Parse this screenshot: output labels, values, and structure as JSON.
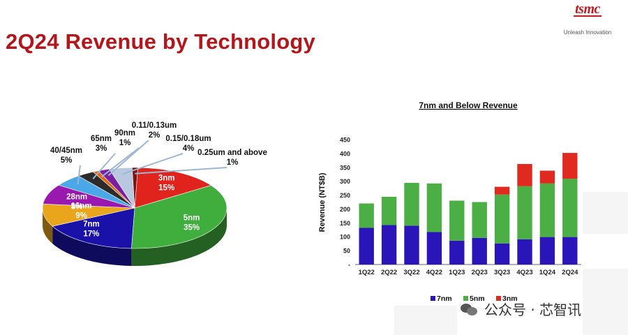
{
  "page": {
    "title": "2Q24 Revenue by Technology",
    "logo": "tsmc",
    "tagline": "Unleash Innovation",
    "watermark": "公众号 · 芯智讯"
  },
  "chart_data": [
    {
      "type": "pie",
      "title": "",
      "style": "3d",
      "slices": [
        {
          "label": "3nm",
          "value": 15,
          "display": "15%",
          "color": "#e0231c"
        },
        {
          "label": "5nm",
          "value": 35,
          "display": "35%",
          "color": "#3fae3c"
        },
        {
          "label": "7nm",
          "value": 17,
          "display": "17%",
          "color": "#1a12a8"
        },
        {
          "label": "16nm",
          "value": 9,
          "display": "9%",
          "color": "#e9a51b"
        },
        {
          "label": "28nm",
          "value": 8,
          "display": "8%",
          "color": "#9a17b0"
        },
        {
          "label": "40/45nm",
          "value": 5,
          "display": "5%",
          "color": "#4aa8e8"
        },
        {
          "label": "65nm",
          "value": 3,
          "display": "3%",
          "color": "#2b2b2b"
        },
        {
          "label": "90nm",
          "value": 1,
          "display": "1%",
          "color": "#e06a12"
        },
        {
          "label": "0.11/0.13um",
          "value": 2,
          "display": "2%",
          "color": "#7a1fa2"
        },
        {
          "label": "0.15/0.18um",
          "value": 4,
          "display": "4%",
          "color": "#b7c8e0"
        },
        {
          "label": "0.25um and above",
          "value": 1,
          "display": "1%",
          "color": "#7d1414"
        }
      ]
    },
    {
      "type": "bar",
      "stacked": true,
      "title": "7nm and Below Revenue",
      "xlabel": "",
      "ylabel": "Revenue (NT$B)",
      "ylim": [
        0,
        450
      ],
      "yticks": [
        "-",
        "50",
        "100",
        "150",
        "200",
        "250",
        "300",
        "350",
        "400",
        "450"
      ],
      "categories": [
        "1Q22",
        "2Q22",
        "3Q22",
        "4Q22",
        "1Q23",
        "2Q23",
        "3Q23",
        "4Q23",
        "1Q24",
        "2Q24"
      ],
      "series": [
        {
          "name": "7nm",
          "color": "#2a16b8",
          "values": [
            132,
            142,
            140,
            117,
            86,
            96,
            76,
            91,
            99,
            99
          ]
        },
        {
          "name": "5nm",
          "color": "#4caf46",
          "values": [
            88,
            102,
            154,
            175,
            144,
            129,
            176,
            191,
            193,
            210
          ]
        },
        {
          "name": "3nm",
          "color": "#e02a20",
          "values": [
            0,
            0,
            0,
            0,
            0,
            0,
            28,
            80,
            46,
            93
          ]
        }
      ],
      "legend": "bottom"
    }
  ]
}
